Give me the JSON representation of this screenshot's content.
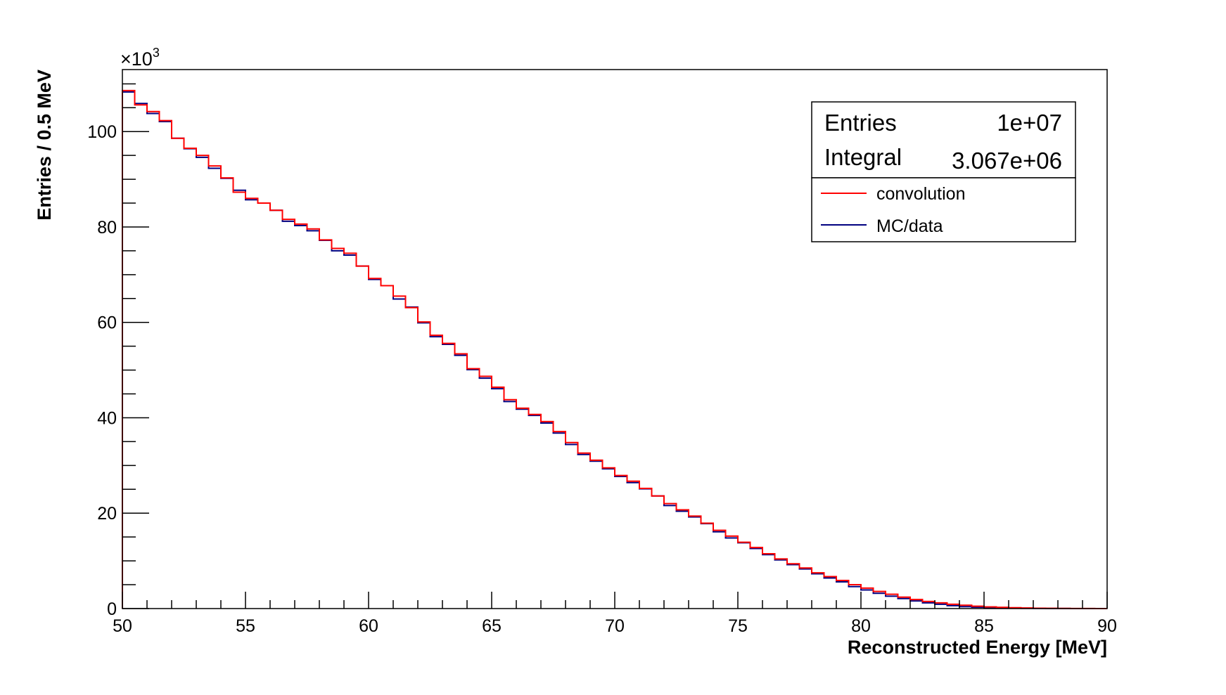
{
  "chart_data": {
    "type": "histogram",
    "xlabel": "Reconstructed Energy [MeV]",
    "ylabel": "Entries / 0.5 MeV",
    "y_multiplier": "×10",
    "y_multiplier_exp": "3",
    "xlim": [
      50,
      90
    ],
    "ylim": [
      0,
      113
    ],
    "x_ticks": [
      {
        "value": 50,
        "label": "50"
      },
      {
        "value": 55,
        "label": "55"
      },
      {
        "value": 60,
        "label": "60"
      },
      {
        "value": 65,
        "label": "65"
      },
      {
        "value": 70,
        "label": "70"
      },
      {
        "value": 75,
        "label": "75"
      },
      {
        "value": 80,
        "label": "80"
      },
      {
        "value": 85,
        "label": "85"
      },
      {
        "value": 90,
        "label": "90"
      }
    ],
    "y_ticks": [
      {
        "value": 0,
        "label": "0"
      },
      {
        "value": 20,
        "label": "20"
      },
      {
        "value": 40,
        "label": "40"
      },
      {
        "value": 60,
        "label": "60"
      },
      {
        "value": 80,
        "label": "80"
      },
      {
        "value": 100,
        "label": "100"
      }
    ],
    "bin_edges_start": 50,
    "bin_width": 0.5,
    "grid": false,
    "stats_box": {
      "placement": "top-right",
      "rows": [
        {
          "label": "Entries",
          "value": "1e+07"
        },
        {
          "label": "Integral",
          "value": "3.067e+06"
        }
      ]
    },
    "legend": {
      "placement": "top-right",
      "entries": [
        {
          "name": "convolution",
          "color": "#ff0000"
        },
        {
          "name": "MC/data",
          "color": "#000080"
        }
      ]
    },
    "series": [
      {
        "name": "MC/data",
        "color": "#000080",
        "values": [
          108.3,
          105.9,
          103.8,
          102.1,
          98.6,
          96.4,
          94.6,
          92.3,
          90.2,
          87.7,
          85.7,
          85.0,
          83.5,
          81.2,
          80.3,
          79.2,
          77.2,
          75.0,
          74.1,
          71.8,
          69.0,
          67.7,
          64.9,
          63.2,
          59.9,
          57.0,
          55.4,
          53.1,
          50.1,
          48.3,
          46.1,
          43.4,
          41.8,
          40.5,
          38.9,
          36.8,
          34.4,
          32.3,
          30.9,
          29.3,
          27.7,
          26.4,
          25.1,
          23.6,
          21.6,
          20.4,
          19.2,
          17.8,
          16.1,
          14.8,
          13.8,
          12.6,
          11.3,
          10.2,
          9.2,
          8.3,
          7.3,
          6.4,
          5.6,
          4.6,
          3.9,
          3.2,
          2.6,
          2.1,
          1.6,
          1.2,
          0.9,
          0.6,
          0.4,
          0.3,
          0.2,
          0.15,
          0.1,
          0.05,
          0.03,
          0.02,
          0.01,
          0.005,
          0.0,
          0.0
        ]
      },
      {
        "name": "convolution",
        "color": "#ff0000",
        "values": [
          108.6,
          105.6,
          104.2,
          102.3,
          98.6,
          96.5,
          95.0,
          92.8,
          90.3,
          87.3,
          86.0,
          85.0,
          83.5,
          81.6,
          80.6,
          79.6,
          77.3,
          75.5,
          74.5,
          71.8,
          69.2,
          67.7,
          65.5,
          63.1,
          60.1,
          57.3,
          55.6,
          53.4,
          50.3,
          48.7,
          46.4,
          43.8,
          42.0,
          40.7,
          39.2,
          37.1,
          34.8,
          32.6,
          31.1,
          29.5,
          27.9,
          26.7,
          25.2,
          23.6,
          22.0,
          20.7,
          19.4,
          17.9,
          16.4,
          15.2,
          13.9,
          12.8,
          11.5,
          10.4,
          9.4,
          8.5,
          7.5,
          6.7,
          5.9,
          5.0,
          4.3,
          3.6,
          3.0,
          2.4,
          1.9,
          1.5,
          1.2,
          0.9,
          0.7,
          0.5,
          0.35,
          0.25,
          0.18,
          0.12,
          0.08,
          0.05,
          0.03,
          0.02,
          0.01,
          0.005
        ]
      }
    ]
  }
}
